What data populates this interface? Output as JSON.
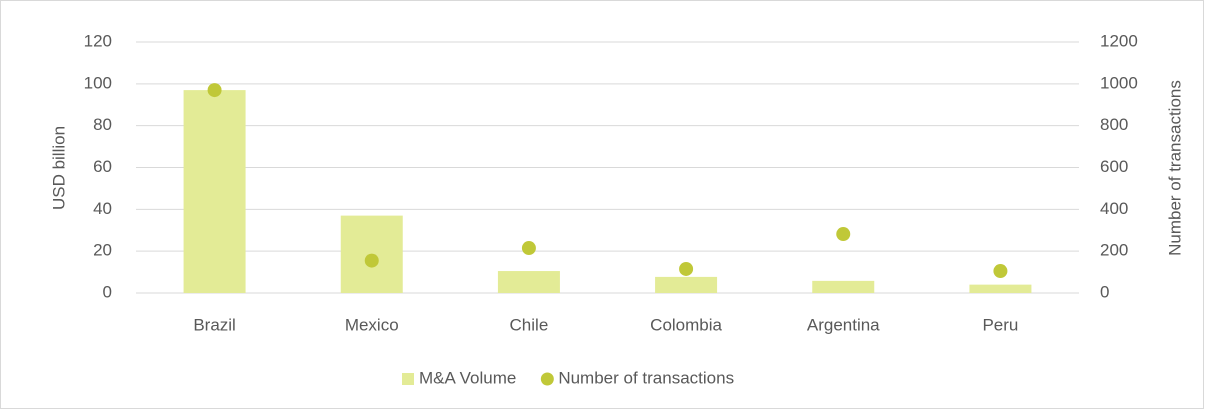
{
  "chart_data": {
    "type": "bar",
    "categories": [
      "Brazil",
      "Mexico",
      "Chile",
      "Colombia",
      "Argentina",
      "Peru"
    ],
    "series": [
      {
        "name": "M&A Volume",
        "type": "bar",
        "color": "#e3eb96",
        "values": [
          97,
          37,
          10.5,
          7.7,
          5.8,
          4
        ]
      },
      {
        "name": "Number of transactions",
        "type": "scatter",
        "axis": "y2",
        "color": "#c0c838",
        "values": [
          970,
          155,
          215,
          115,
          282,
          105
        ]
      }
    ],
    "ylabel": "USD billion",
    "y2label": "Number of transactions",
    "ylim": [
      0,
      120
    ],
    "yticks": [
      0,
      20,
      40,
      60,
      80,
      100,
      120
    ],
    "y2lim": [
      0,
      1200
    ],
    "y2ticks": [
      0,
      200,
      400,
      600,
      800,
      1000,
      1200
    ],
    "grid": true,
    "legend": "bottom"
  }
}
